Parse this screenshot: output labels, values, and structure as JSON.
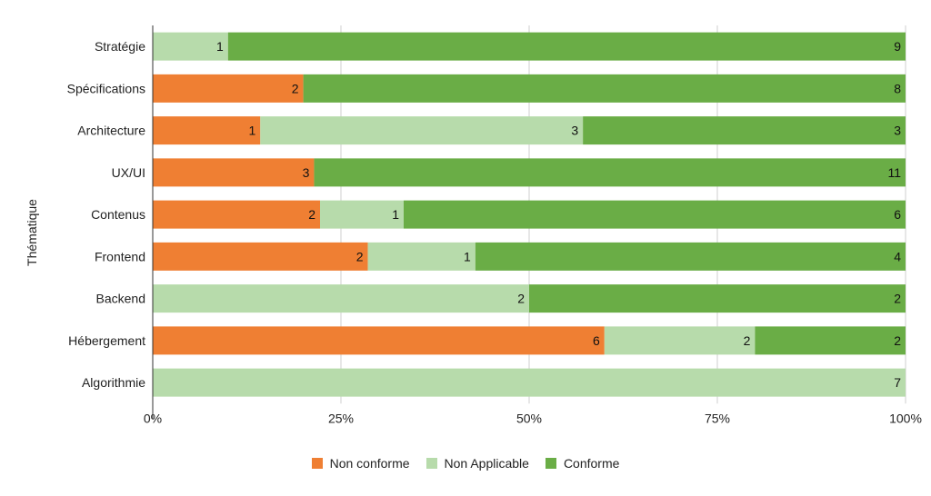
{
  "chart_data": {
    "type": "bar",
    "orientation": "horizontal",
    "stacked": "percent",
    "title": "",
    "ylabel": "Thématique",
    "xlabel": "",
    "categories": [
      "Stratégie",
      "Spécifications",
      "Architecture",
      "UX/UI",
      "Contenus",
      "Frontend",
      "Backend",
      "Hébergement",
      "Algorithmie"
    ],
    "series": [
      {
        "name": "Non conforme",
        "color": "#ef7f33",
        "values": [
          0,
          2,
          1,
          3,
          2,
          2,
          0,
          6,
          0
        ]
      },
      {
        "name": "Non Applicable",
        "color": "#b7dbab",
        "values": [
          1,
          0,
          3,
          0,
          1,
          1,
          2,
          2,
          7
        ]
      },
      {
        "name": "Conforme",
        "color": "#6aad46",
        "values": [
          9,
          8,
          3,
          11,
          6,
          4,
          2,
          2,
          0
        ]
      }
    ],
    "xticks": [
      "0%",
      "25%",
      "50%",
      "75%",
      "100%"
    ],
    "xlim": [
      0,
      100
    ],
    "grid": true,
    "legend_position": "bottom"
  }
}
